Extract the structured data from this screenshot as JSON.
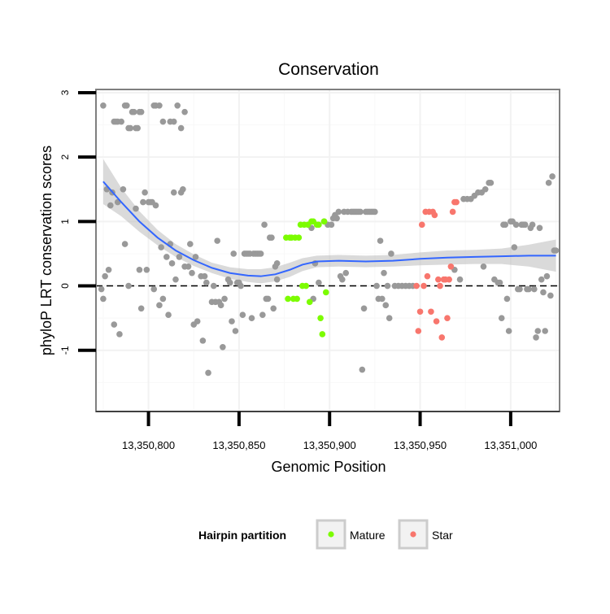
{
  "chart_data": {
    "type": "scatter",
    "title": "Conservation",
    "xlabel": "Genomic Position",
    "ylabel": "phyloP LRT conservation scores",
    "xlim": [
      13350771,
      13351027
    ],
    "ylim": [
      -1.95,
      3.05
    ],
    "x_ticks": [
      {
        "value": 13350800,
        "label": "13,350,800"
      },
      {
        "value": 13350850,
        "label": "13,350,850"
      },
      {
        "value": 13350900,
        "label": "13,350,900"
      },
      {
        "value": 13350950,
        "label": "13,350,950"
      },
      {
        "value": 13351000,
        "label": "13,351,000"
      }
    ],
    "y_ticks": [
      {
        "value": -1,
        "label": "-1"
      },
      {
        "value": 0,
        "label": "0"
      },
      {
        "value": 1,
        "label": "1"
      },
      {
        "value": 2,
        "label": "2"
      },
      {
        "value": 3,
        "label": "3"
      }
    ],
    "grid": true,
    "reference_line": {
      "y": 0,
      "style": "dashed"
    },
    "legend": {
      "title": "Hairpin partition",
      "position": "bottom",
      "entries": [
        {
          "label": "Mature",
          "color": "#7cfc00"
        },
        {
          "label": "Star",
          "color": "#f8766d"
        }
      ]
    },
    "colors": {
      "Other": "#999999",
      "Mature": "#7cfc00",
      "Star": "#f8766d",
      "smooth": "#3366ff",
      "ribbon": "#bbbbbb"
    },
    "series": [
      {
        "name": "Other",
        "points": [
          [
            13350775,
            2.8
          ],
          [
            13350781,
            2.55
          ],
          [
            13350782,
            2.55
          ],
          [
            13350783,
            2.55
          ],
          [
            13350785,
            2.55
          ],
          [
            13350787,
            2.8
          ],
          [
            13350788,
            2.8
          ],
          [
            13350789,
            2.45
          ],
          [
            13350790,
            2.45
          ],
          [
            13350791,
            2.7
          ],
          [
            13350792,
            2.7
          ],
          [
            13350793,
            2.45
          ],
          [
            13350794,
            2.45
          ],
          [
            13350795,
            2.7
          ],
          [
            13350796,
            2.7
          ],
          [
            13350803,
            2.8
          ],
          [
            13350804,
            2.8
          ],
          [
            13350806,
            2.8
          ],
          [
            13350808,
            2.55
          ],
          [
            13350812,
            2.55
          ],
          [
            13350814,
            2.55
          ],
          [
            13350816,
            2.8
          ],
          [
            13350818,
            2.45
          ],
          [
            13350820,
            2.7
          ],
          [
            13350774,
            -0.05
          ],
          [
            13350775,
            -0.2
          ],
          [
            13350776,
            0.15
          ],
          [
            13350777,
            1.5
          ],
          [
            13350778,
            0.25
          ],
          [
            13350779,
            1.25
          ],
          [
            13350780,
            1.45
          ],
          [
            13350781,
            -0.6
          ],
          [
            13350783,
            1.3
          ],
          [
            13350784,
            -0.75
          ],
          [
            13350786,
            1.5
          ],
          [
            13350787,
            0.65
          ],
          [
            13350789,
            0.0
          ],
          [
            13350793,
            1.2
          ],
          [
            13350795,
            0.25
          ],
          [
            13350796,
            -0.35
          ],
          [
            13350797,
            1.3
          ],
          [
            13350798,
            1.45
          ],
          [
            13350799,
            0.25
          ],
          [
            13350800,
            1.3
          ],
          [
            13350801,
            1.3
          ],
          [
            13350802,
            1.3
          ],
          [
            13350803,
            -0.05
          ],
          [
            13350804,
            1.25
          ],
          [
            13350806,
            -0.3
          ],
          [
            13350807,
            0.6
          ],
          [
            13350808,
            -0.2
          ],
          [
            13350810,
            0.45
          ],
          [
            13350811,
            -0.45
          ],
          [
            13350812,
            0.65
          ],
          [
            13350813,
            0.35
          ],
          [
            13350814,
            1.45
          ],
          [
            13350815,
            0.1
          ],
          [
            13350817,
            0.45
          ],
          [
            13350818,
            1.45
          ],
          [
            13350819,
            1.5
          ],
          [
            13350820,
            0.3
          ],
          [
            13350822,
            0.3
          ],
          [
            13350823,
            0.65
          ],
          [
            13350824,
            0.2
          ],
          [
            13350825,
            -0.6
          ],
          [
            13350826,
            0.45
          ],
          [
            13350827,
            -0.55
          ],
          [
            13350829,
            0.15
          ],
          [
            13350830,
            -0.85
          ],
          [
            13350831,
            0.15
          ],
          [
            13350832,
            0.05
          ],
          [
            13350833,
            -1.35
          ],
          [
            13350835,
            -0.25
          ],
          [
            13350836,
            0.0
          ],
          [
            13350837,
            -0.25
          ],
          [
            13350838,
            0.7
          ],
          [
            13350839,
            -0.25
          ],
          [
            13350840,
            -0.3
          ],
          [
            13350841,
            -0.95
          ],
          [
            13350842,
            -0.2
          ],
          [
            13350844,
            0.1
          ],
          [
            13350845,
            0.05
          ],
          [
            13350846,
            -0.55
          ],
          [
            13350847,
            0.5
          ],
          [
            13350848,
            -0.7
          ],
          [
            13350849,
            0.05
          ],
          [
            13350850,
            0.05
          ],
          [
            13350851,
            0.0
          ],
          [
            13350852,
            -0.45
          ],
          [
            13350853,
            0.5
          ],
          [
            13350854,
            0.5
          ],
          [
            13350855,
            0.5
          ],
          [
            13350856,
            0.5
          ],
          [
            13350857,
            -0.5
          ],
          [
            13350858,
            0.5
          ],
          [
            13350859,
            0.5
          ],
          [
            13350860,
            0.5
          ],
          [
            13350861,
            0.5
          ],
          [
            13350862,
            0.5
          ],
          [
            13350863,
            -0.45
          ],
          [
            13350864,
            0.95
          ],
          [
            13350865,
            -0.2
          ],
          [
            13350866,
            -0.2
          ],
          [
            13350867,
            0.75
          ],
          [
            13350868,
            0.75
          ],
          [
            13350869,
            -0.35
          ],
          [
            13350870,
            0.3
          ],
          [
            13350871,
            0.35
          ],
          [
            13350871,
            0.1
          ],
          [
            13350890,
            0.9
          ],
          [
            13350891,
            -0.2
          ],
          [
            13350892,
            0.35
          ],
          [
            13350894,
            0.05
          ],
          [
            13350897,
            1.0
          ],
          [
            13350899,
            0.95
          ],
          [
            13350901,
            0.95
          ],
          [
            13350902,
            1.05
          ],
          [
            13350903,
            1.1
          ],
          [
            13350904,
            1.05
          ],
          [
            13350905,
            1.15
          ],
          [
            13350906,
            0.15
          ],
          [
            13350907,
            0.1
          ],
          [
            13350908,
            1.15
          ],
          [
            13350909,
            0.2
          ],
          [
            13350910,
            1.15
          ],
          [
            13350912,
            1.15
          ],
          [
            13350913,
            1.15
          ],
          [
            13350914,
            1.15
          ],
          [
            13350915,
            1.15
          ],
          [
            13350916,
            1.15
          ],
          [
            13350917,
            1.15
          ],
          [
            13350918,
            -1.3
          ],
          [
            13350919,
            -0.35
          ],
          [
            13350920,
            1.15
          ],
          [
            13350921,
            1.15
          ],
          [
            13350922,
            1.15
          ],
          [
            13350923,
            1.15
          ],
          [
            13350924,
            1.15
          ],
          [
            13350925,
            1.15
          ],
          [
            13350926,
            0.0
          ],
          [
            13350927,
            -0.2
          ],
          [
            13350928,
            0.7
          ],
          [
            13350929,
            -0.2
          ],
          [
            13350930,
            0.2
          ],
          [
            13350931,
            -0.3
          ],
          [
            13350932,
            0.0
          ],
          [
            13350933,
            -0.5
          ],
          [
            13350934,
            0.5
          ],
          [
            13350936,
            0.0
          ],
          [
            13350938,
            0.0
          ],
          [
            13350940,
            0.0
          ],
          [
            13350942,
            0.0
          ],
          [
            13350944,
            0.0
          ],
          [
            13350946,
            0.0
          ],
          [
            13350969,
            0.25
          ],
          [
            13350972,
            0.1
          ],
          [
            13350974,
            1.35
          ],
          [
            13350976,
            1.35
          ],
          [
            13350978,
            1.35
          ],
          [
            13350980,
            1.4
          ],
          [
            13350982,
            1.45
          ],
          [
            13350984,
            1.45
          ],
          [
            13350985,
            0.3
          ],
          [
            13350986,
            1.5
          ],
          [
            13350988,
            1.6
          ],
          [
            13350989,
            1.6
          ],
          [
            13350991,
            0.1
          ],
          [
            13350993,
            0.05
          ],
          [
            13350994,
            0.05
          ],
          [
            13350995,
            -0.5
          ],
          [
            13350996,
            0.95
          ],
          [
            13350997,
            0.95
          ],
          [
            13350998,
            -0.2
          ],
          [
            13350999,
            -0.7
          ],
          [
            13351000,
            1.0
          ],
          [
            13351001,
            1.0
          ],
          [
            13351002,
            0.6
          ],
          [
            13351003,
            0.95
          ],
          [
            13351004,
            -0.05
          ],
          [
            13351005,
            -0.05
          ],
          [
            13351006,
            0.95
          ],
          [
            13351007,
            0.95
          ],
          [
            13351008,
            0.95
          ],
          [
            13351009,
            -0.05
          ],
          [
            13351010,
            -0.05
          ],
          [
            13351011,
            0.9
          ],
          [
            13351012,
            0.95
          ],
          [
            13351013,
            -0.05
          ],
          [
            13351014,
            -0.8
          ],
          [
            13351015,
            -0.7
          ],
          [
            13351016,
            0.9
          ],
          [
            13351017,
            0.1
          ],
          [
            13351018,
            -0.1
          ],
          [
            13351019,
            -0.7
          ],
          [
            13351020,
            0.15
          ],
          [
            13351021,
            1.6
          ],
          [
            13351022,
            -0.15
          ],
          [
            13351023,
            1.7
          ],
          [
            13351024,
            0.55
          ],
          [
            13351025,
            0.55
          ]
        ]
      },
      {
        "name": "Mature",
        "points": [
          [
            13350876,
            0.75
          ],
          [
            13350877,
            -0.2
          ],
          [
            13350878,
            0.75
          ],
          [
            13350879,
            0.75
          ],
          [
            13350880,
            -0.2
          ],
          [
            13350881,
            0.75
          ],
          [
            13350882,
            -0.2
          ],
          [
            13350883,
            0.75
          ],
          [
            13350884,
            0.95
          ],
          [
            13350885,
            0.0
          ],
          [
            13350886,
            0.95
          ],
          [
            13350887,
            0.0
          ],
          [
            13350888,
            0.95
          ],
          [
            13350889,
            -0.25
          ],
          [
            13350890,
            1.0
          ],
          [
            13350891,
            1.0
          ],
          [
            13350893,
            0.95
          ],
          [
            13350894,
            0.95
          ],
          [
            13350895,
            -0.5
          ],
          [
            13350896,
            -0.75
          ],
          [
            13350897,
            1.0
          ],
          [
            13350898,
            -0.1
          ]
        ]
      },
      {
        "name": "Star",
        "points": [
          [
            13350948,
            0.0
          ],
          [
            13350949,
            -0.7
          ],
          [
            13350950,
            -0.4
          ],
          [
            13350951,
            0.95
          ],
          [
            13350952,
            0.0
          ],
          [
            13350953,
            1.15
          ],
          [
            13350954,
            0.15
          ],
          [
            13350955,
            1.15
          ],
          [
            13350956,
            -0.4
          ],
          [
            13350957,
            1.15
          ],
          [
            13350958,
            1.1
          ],
          [
            13350959,
            -0.55
          ],
          [
            13350960,
            0.1
          ],
          [
            13350961,
            0.0
          ],
          [
            13350962,
            -0.8
          ],
          [
            13350963,
            0.1
          ],
          [
            13350964,
            0.1
          ],
          [
            13350965,
            -0.5
          ],
          [
            13350966,
            0.1
          ],
          [
            13350967,
            0.3
          ],
          [
            13350968,
            1.15
          ],
          [
            13350969,
            1.3
          ],
          [
            13350970,
            1.3
          ]
        ]
      }
    ],
    "smooth": [
      [
        13350775,
        1.62
      ],
      [
        13350785,
        1.3
      ],
      [
        13350795,
        1.0
      ],
      [
        13350805,
        0.75
      ],
      [
        13350815,
        0.55
      ],
      [
        13350825,
        0.4
      ],
      [
        13350835,
        0.28
      ],
      [
        13350845,
        0.2
      ],
      [
        13350855,
        0.16
      ],
      [
        13350862,
        0.15
      ],
      [
        13350870,
        0.18
      ],
      [
        13350878,
        0.25
      ],
      [
        13350885,
        0.33
      ],
      [
        13350893,
        0.38
      ],
      [
        13350905,
        0.39
      ],
      [
        13350920,
        0.38
      ],
      [
        13350935,
        0.39
      ],
      [
        13350950,
        0.42
      ],
      [
        13350965,
        0.44
      ],
      [
        13350980,
        0.45
      ],
      [
        13350995,
        0.46
      ],
      [
        13351010,
        0.47
      ],
      [
        13351025,
        0.47
      ]
    ],
    "smooth_band": [
      [
        13350775,
        1.27,
        1.97
      ],
      [
        13350785,
        1.08,
        1.52
      ],
      [
        13350795,
        0.84,
        1.16
      ],
      [
        13350805,
        0.63,
        0.87
      ],
      [
        13350815,
        0.45,
        0.65
      ],
      [
        13350825,
        0.31,
        0.49
      ],
      [
        13350835,
        0.2,
        0.36
      ],
      [
        13350845,
        0.11,
        0.29
      ],
      [
        13350855,
        0.06,
        0.26
      ],
      [
        13350862,
        0.04,
        0.26
      ],
      [
        13350870,
        0.07,
        0.29
      ],
      [
        13350878,
        0.14,
        0.36
      ],
      [
        13350885,
        0.23,
        0.43
      ],
      [
        13350893,
        0.29,
        0.47
      ],
      [
        13350905,
        0.3,
        0.48
      ],
      [
        13350920,
        0.29,
        0.47
      ],
      [
        13350935,
        0.3,
        0.48
      ],
      [
        13350950,
        0.32,
        0.52
      ],
      [
        13350965,
        0.33,
        0.55
      ],
      [
        13350980,
        0.34,
        0.56
      ],
      [
        13350995,
        0.34,
        0.58
      ],
      [
        13351010,
        0.3,
        0.64
      ],
      [
        13351025,
        0.22,
        0.72
      ]
    ]
  }
}
